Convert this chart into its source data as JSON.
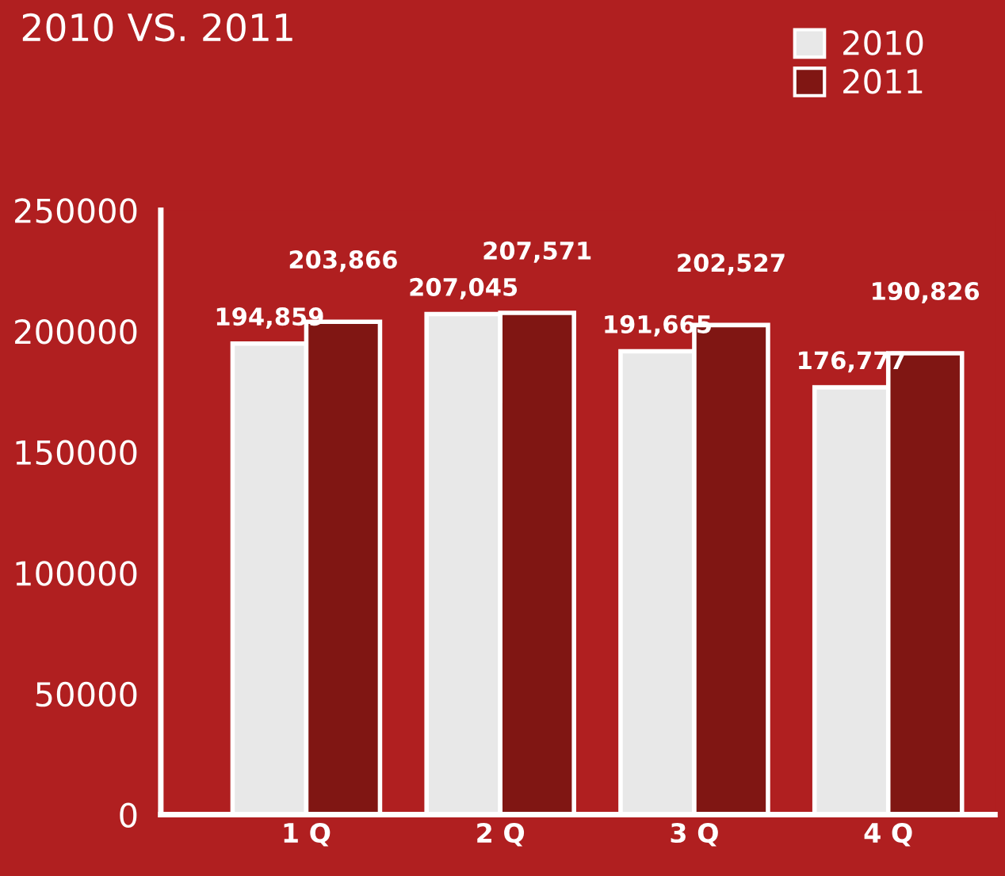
{
  "chart_data": {
    "type": "bar",
    "title": "2010 VS. 2011",
    "categories": [
      "1 Q",
      "2 Q",
      "3 Q",
      "4 Q"
    ],
    "series": [
      {
        "name": "2010",
        "color": "#e8e8e8",
        "values": [
          194859,
          207045,
          191665,
          176777
        ],
        "value_labels": [
          "194,859",
          "207,045",
          "191,665",
          "176,777"
        ]
      },
      {
        "name": "2011",
        "color": "#801613",
        "values": [
          203866,
          207571,
          202527,
          190826
        ],
        "value_labels": [
          "203,866",
          "207,571",
          "202,527",
          "190,826"
        ]
      }
    ],
    "ylim": [
      0,
      250000
    ],
    "yticks": [
      0,
      50000,
      100000,
      150000,
      200000,
      250000
    ],
    "legend": "top right",
    "grid": false
  }
}
